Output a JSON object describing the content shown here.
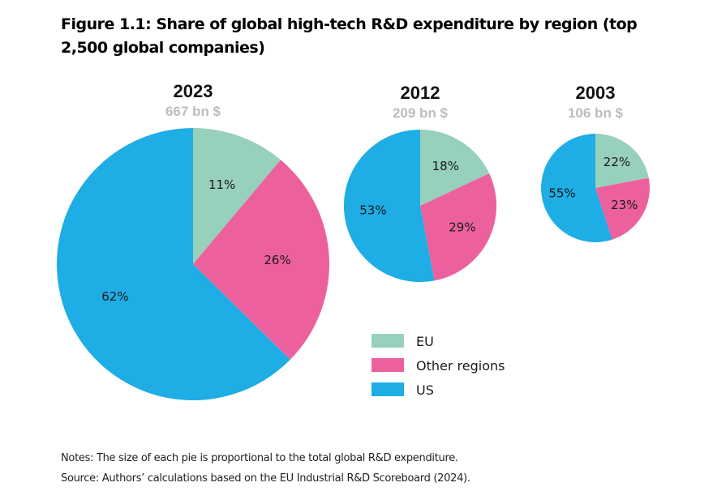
{
  "chart_data": {
    "type": "pie",
    "title": "Figure 1.1: Share of global high-tech R&D expenditure by region (top 2,500 global companies)",
    "legend": {
      "position": "center-right",
      "entries": [
        {
          "name": "EU",
          "color": "#97d0bb"
        },
        {
          "name": "Other regions",
          "color": "#ec619d"
        },
        {
          "name": "US",
          "color": "#1eade4"
        }
      ]
    },
    "pies": [
      {
        "year": "2023",
        "total_label": "667 bn $",
        "total": 667,
        "slices": [
          {
            "name": "EU",
            "value": 11,
            "label": "11%"
          },
          {
            "name": "Other regions",
            "value": 26,
            "label": "26%"
          },
          {
            "name": "US",
            "value": 62,
            "label": "62%"
          }
        ]
      },
      {
        "year": "2012",
        "total_label": "209 bn $",
        "total": 209,
        "slices": [
          {
            "name": "EU",
            "value": 18,
            "label": "18%"
          },
          {
            "name": "Other regions",
            "value": 29,
            "label": "29%"
          },
          {
            "name": "US",
            "value": 53,
            "label": "53%"
          }
        ]
      },
      {
        "year": "2003",
        "total_label": "106 bn $",
        "total": 106,
        "slices": [
          {
            "name": "EU",
            "value": 22,
            "label": "22%"
          },
          {
            "name": "Other regions",
            "value": 23,
            "label": "23%"
          },
          {
            "name": "US",
            "value": 55,
            "label": "55%"
          }
        ]
      }
    ]
  },
  "notes": "Notes: The size of each pie is proportional to the total global R&D expenditure.",
  "source": "Source: Authors’ calculations based on the EU Industrial R&D Scoreboard (2024)."
}
